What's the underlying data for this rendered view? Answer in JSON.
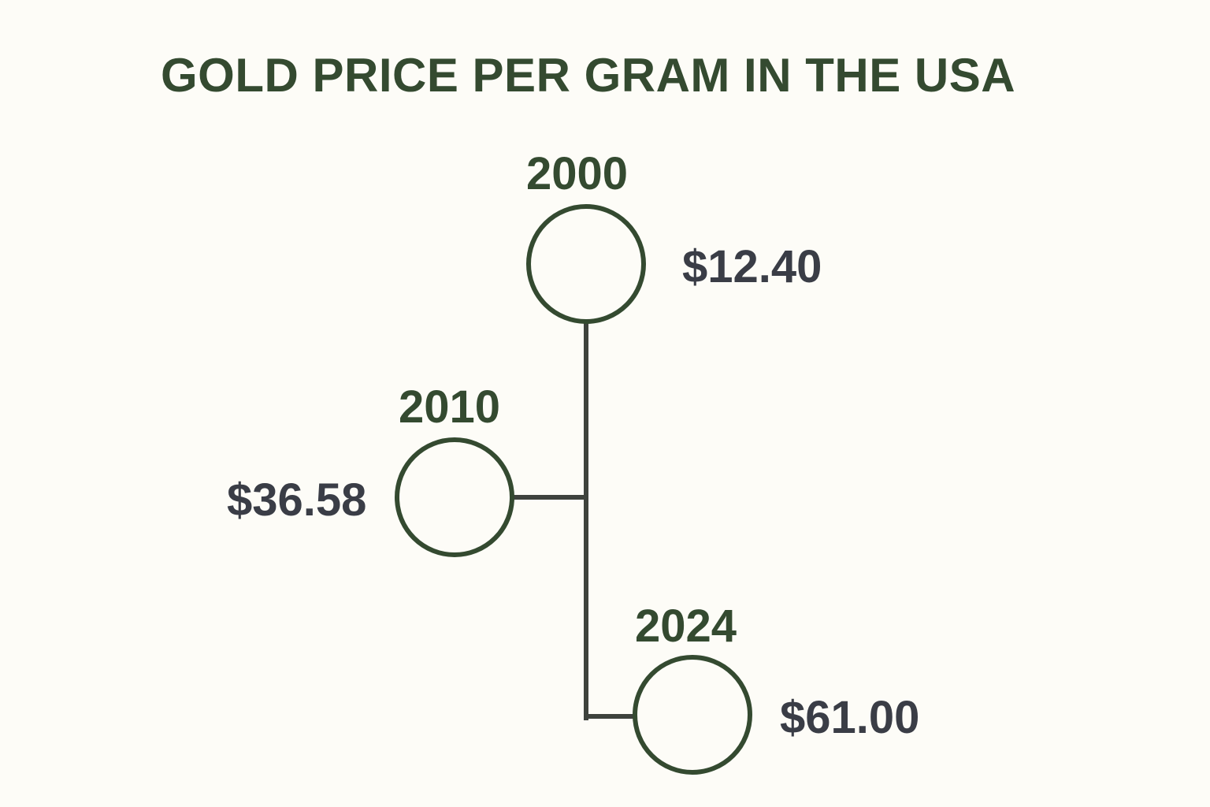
{
  "title": "GOLD PRICE PER GRAM IN THE USA",
  "colors": {
    "background": "#fdfcf7",
    "accent": "#344a30",
    "connector": "#3e423d",
    "price_text": "#3a3d46"
  },
  "timeline": {
    "entries": [
      {
        "year": "2000",
        "price": "$12.40"
      },
      {
        "year": "2010",
        "price": "$36.58"
      },
      {
        "year": "2024",
        "price": "$61.00"
      }
    ]
  }
}
